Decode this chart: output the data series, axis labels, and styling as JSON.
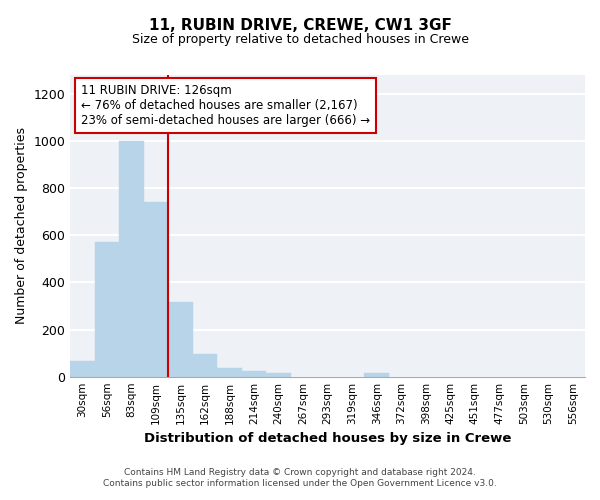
{
  "title": "11, RUBIN DRIVE, CREWE, CW1 3GF",
  "subtitle": "Size of property relative to detached houses in Crewe",
  "xlabel": "Distribution of detached houses by size in Crewe",
  "ylabel": "Number of detached properties",
  "bar_color": "#b8d4e8",
  "bar_edge_color": "#b8d4e8",
  "categories": [
    "30sqm",
    "56sqm",
    "83sqm",
    "109sqm",
    "135sqm",
    "162sqm",
    "188sqm",
    "214sqm",
    "240sqm",
    "267sqm",
    "293sqm",
    "319sqm",
    "346sqm",
    "372sqm",
    "398sqm",
    "425sqm",
    "451sqm",
    "477sqm",
    "503sqm",
    "530sqm",
    "556sqm"
  ],
  "values": [
    65,
    570,
    1000,
    740,
    315,
    95,
    38,
    22,
    14,
    0,
    0,
    0,
    14,
    0,
    0,
    0,
    0,
    0,
    0,
    0,
    0
  ],
  "ylim": [
    0,
    1280
  ],
  "yticks": [
    0,
    200,
    400,
    600,
    800,
    1000,
    1200
  ],
  "annotation_text": "11 RUBIN DRIVE: 126sqm\n← 76% of detached houses are smaller (2,167)\n23% of semi-detached houses are larger (666) →",
  "red_line_x": 3.5,
  "annotation_box_color": "#ffffff",
  "annotation_box_edge": "#cc0000",
  "red_line_color": "#cc0000",
  "background_color": "#eef2f7",
  "grid_color": "#ffffff",
  "footer_line1": "Contains HM Land Registry data © Crown copyright and database right 2024.",
  "footer_line2": "Contains public sector information licensed under the Open Government Licence v3.0."
}
